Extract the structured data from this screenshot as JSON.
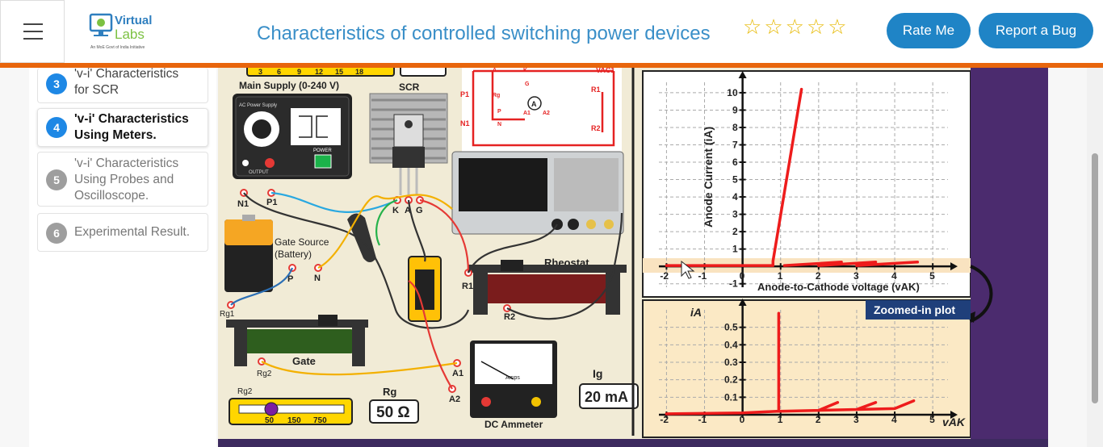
{
  "header": {
    "logo_text_1": "Virtual",
    "logo_text_2": "Labs",
    "logo_tagline": "An MoE Govt of India Initiative",
    "title": "Characteristics of controlled switching power devices",
    "rate_label": "Rate Me",
    "bug_label": "Report a Bug",
    "star_glyph": "☆",
    "star_count": 5
  },
  "sidebar": {
    "items": [
      {
        "num": "3",
        "label_1": "'v-i' Characteristics",
        "label_2": "for SCR",
        "state": "done"
      },
      {
        "num": "4",
        "label_1": "'v-i' Characteristics",
        "label_2": "Using Meters.",
        "state": "active"
      },
      {
        "num": "5",
        "label_1": "'v-i' Characteristics",
        "label_2": "Using Probes and",
        "label_3": "Oscilloscope.",
        "state": "pending"
      },
      {
        "num": "6",
        "label_1": "Experimental Result.",
        "state": "pending"
      }
    ]
  },
  "sim": {
    "ruler_ticks": [
      "3",
      "6",
      "9",
      "12",
      "15",
      "18"
    ],
    "main_supply": "Main Supply (0-240 V)",
    "ac_power": "AC Power Supply",
    "power": "POWER",
    "output": "OUTPUT",
    "scr": "SCR",
    "n1": "N1",
    "p1": "P1",
    "k": "K",
    "a": "A",
    "g": "G",
    "gate_source_1": "Gate Source",
    "gate_source_2": "(Battery)",
    "p": "P",
    "n": "N",
    "rg1": "Rg1",
    "rheostat": "Rheostat",
    "r1": "R1",
    "r2": "R2",
    "gate": "Gate",
    "rg2": "Rg2",
    "rg2_top": "Rg2",
    "scale_50": "50",
    "scale_150": "150",
    "scale_750": "750",
    "rg_label": "Rg",
    "rg_value": "50 Ω",
    "a1": "A1",
    "a2": "A2",
    "amps": "Amps",
    "dc_ammeter": "DC Ammeter",
    "ig_label": "Ig",
    "ig_value": "20 mA",
    "vac1": "VAC1",
    "circuit_p1": "P1",
    "circuit_n1": "N1",
    "circuit_p": "P",
    "circuit_n": "N",
    "circuit_a1": "A1",
    "circuit_a2": "A2",
    "circuit_r1": "R1",
    "circuit_r2": "R2",
    "circuit_rg": "Rg",
    "circuit_a": "A",
    "circuit_k": "K",
    "circuit_g": "G",
    "circuit_ammeter": "A"
  },
  "chart_data": [
    {
      "type": "line",
      "title": "",
      "xlabel": "Anode-to-Cathode voltage (vAK)",
      "ylabel": "Anode Current (iA)",
      "x_ticks": [
        "-2",
        "-1",
        "0",
        "1",
        "2",
        "3",
        "4",
        "5"
      ],
      "y_ticks": [
        "-1",
        "1",
        "2",
        "3",
        "4",
        "5",
        "6",
        "7",
        "8",
        "9",
        "10"
      ],
      "xlim": [
        -2.2,
        5.4
      ],
      "ylim": [
        -1.2,
        10.6
      ],
      "grid": true,
      "series": [
        {
          "x": [
            -2,
            0.8,
            0.8,
            1.55
          ],
          "y": [
            0.05,
            0.05,
            0.3,
            10.2
          ]
        },
        {
          "x": [
            1.1,
            2.6
          ],
          "y": [
            0.05,
            0.25
          ]
        },
        {
          "x": [
            2.0,
            3.5
          ],
          "y": [
            0.05,
            0.25
          ]
        },
        {
          "x": [
            3.0,
            4.6
          ],
          "y": [
            0.05,
            0.25
          ]
        }
      ]
    },
    {
      "type": "line",
      "title": "Zoomed-in plot",
      "xlabel": "vAK",
      "ylabel": "iA",
      "x_ticks": [
        "-2",
        "-1",
        "0",
        "1",
        "2",
        "3",
        "4",
        "5"
      ],
      "y_ticks": [
        "0.1",
        "0.2",
        "0.3",
        "0.4",
        "0.5"
      ],
      "xlim": [
        -2.2,
        5.4
      ],
      "ylim": [
        0,
        0.6
      ],
      "grid": true,
      "series": [
        {
          "x": [
            -2,
            0,
            0.9,
            0.95,
            0.95
          ],
          "y": [
            0.005,
            0.01,
            0.02,
            0.02,
            0.58
          ]
        },
        {
          "x": [
            0.95,
            2.0,
            2.5
          ],
          "y": [
            0.02,
            0.025,
            0.07
          ]
        },
        {
          "x": [
            2.0,
            3.0,
            3.5
          ],
          "y": [
            0.025,
            0.03,
            0.07
          ]
        },
        {
          "x": [
            3.0,
            4.0,
            4.5
          ],
          "y": [
            0.03,
            0.035,
            0.08
          ]
        }
      ]
    }
  ],
  "colors": {
    "accent": "#1f84c6",
    "orange": "#e8650c",
    "curve": "#ee1c1c",
    "done": "#1e88e5",
    "pending": "#9e9e9e"
  }
}
